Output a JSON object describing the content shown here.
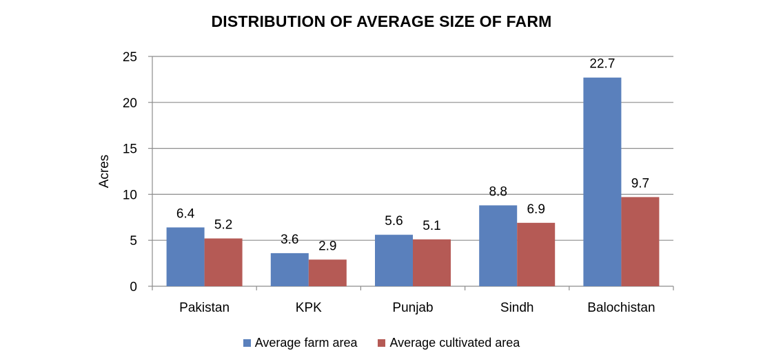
{
  "chart_data": {
    "type": "bar",
    "title": "DISTRIBUTION OF AVERAGE SIZE OF FARM",
    "xlabel": "",
    "ylabel": "Acres",
    "ylim": [
      0,
      25
    ],
    "yticks": [
      0,
      5,
      10,
      15,
      20,
      25
    ],
    "grid": true,
    "legend_position": "bottom",
    "categories": [
      "Pakistan",
      "KPK",
      "Punjab",
      "Sindh",
      "Balochistan"
    ],
    "series": [
      {
        "name": "Average farm area",
        "values": [
          6.4,
          3.6,
          5.6,
          8.8,
          22.7
        ],
        "color": "#5A80BC"
      },
      {
        "name": "Average cultivated area",
        "values": [
          5.2,
          2.9,
          5.1,
          6.9,
          9.7
        ],
        "color": "#B55A55"
      }
    ]
  }
}
